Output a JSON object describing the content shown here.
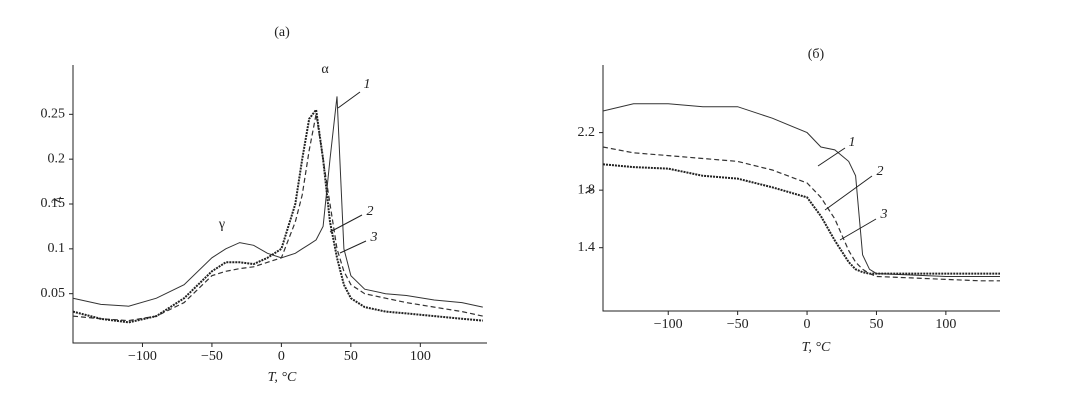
{
  "chart_data": [
    {
      "type": "line",
      "title": "(a)",
      "x_label": "T, °C",
      "y_label": "λ",
      "annotations": [
        "α",
        "γ",
        "1",
        "2",
        "3"
      ],
      "x": [
        -150,
        -130,
        -110,
        -90,
        -70,
        -50,
        -40,
        -30,
        -20,
        -10,
        0,
        10,
        15,
        20,
        25,
        30,
        35,
        40,
        45,
        50,
        60,
        75,
        90,
        110,
        130,
        145
      ],
      "series": [
        {
          "style": "thin",
          "color": "#333333",
          "values": [
            0.045,
            0.038,
            0.036,
            0.045,
            0.06,
            0.09,
            0.1,
            0.107,
            0.104,
            0.095,
            0.09,
            0.095,
            0.1,
            0.105,
            0.11,
            0.125,
            0.2,
            0.27,
            0.1,
            0.07,
            0.055,
            0.05,
            0.048,
            0.043,
            0.04,
            0.035
          ]
        },
        {
          "style": "dashed",
          "color": "#333333",
          "values": [
            0.025,
            0.022,
            0.02,
            0.025,
            0.04,
            0.07,
            0.075,
            0.078,
            0.08,
            0.085,
            0.09,
            0.13,
            0.16,
            0.21,
            0.25,
            0.2,
            0.15,
            0.1,
            0.075,
            0.06,
            0.05,
            0.045,
            0.04,
            0.035,
            0.03,
            0.025
          ]
        },
        {
          "style": "thick",
          "color": "#222222",
          "values": [
            0.03,
            0.022,
            0.018,
            0.025,
            0.045,
            0.075,
            0.085,
            0.085,
            0.083,
            0.09,
            0.1,
            0.15,
            0.2,
            0.245,
            0.255,
            0.2,
            0.13,
            0.09,
            0.06,
            0.045,
            0.035,
            0.03,
            0.028,
            0.025,
            0.022,
            0.02
          ]
        }
      ],
      "xlim": [
        -150,
        148
      ],
      "ylim": [
        -0.005,
        0.305
      ],
      "xticks": [
        {
          "value": -100,
          "label": "−100"
        },
        {
          "value": -50,
          "label": "−50"
        },
        0,
        50,
        100
      ],
      "yticks": [
        0.05,
        0.1,
        0.15,
        0.2,
        0.25
      ],
      "grid": false
    },
    {
      "type": "line",
      "title": "(б)",
      "x_label": "T, °C",
      "y_label": "ν",
      "annotations": [
        "1",
        "2",
        "3"
      ],
      "x": [
        -147,
        -125,
        -100,
        -75,
        -50,
        -25,
        0,
        10,
        20,
        30,
        35,
        40,
        45,
        50,
        75,
        100,
        125,
        139
      ],
      "series": [
        {
          "style": "thin",
          "color": "#333333",
          "values": [
            2.35,
            2.4,
            2.4,
            2.38,
            2.38,
            2.3,
            2.2,
            2.1,
            2.08,
            2.0,
            1.9,
            1.35,
            1.25,
            1.22,
            1.21,
            1.2,
            1.2,
            1.2
          ]
        },
        {
          "style": "dashed",
          "color": "#333333",
          "values": [
            2.1,
            2.06,
            2.04,
            2.02,
            2.0,
            1.94,
            1.85,
            1.75,
            1.6,
            1.38,
            1.3,
            1.25,
            1.22,
            1.2,
            1.19,
            1.18,
            1.17,
            1.17
          ]
        },
        {
          "style": "thick",
          "color": "#222222",
          "values": [
            1.98,
            1.96,
            1.95,
            1.9,
            1.88,
            1.82,
            1.75,
            1.62,
            1.45,
            1.3,
            1.25,
            1.23,
            1.22,
            1.22,
            1.22,
            1.22,
            1.22,
            1.22
          ]
        }
      ],
      "xlim": [
        -147,
        139
      ],
      "ylim": [
        0.96,
        2.67
      ],
      "xticks": [
        {
          "value": -100,
          "label": "−100"
        },
        {
          "value": -50,
          "label": "−50"
        },
        0,
        50,
        100
      ],
      "yticks": [
        1.4,
        1.8,
        2.2
      ],
      "grid": false
    }
  ]
}
